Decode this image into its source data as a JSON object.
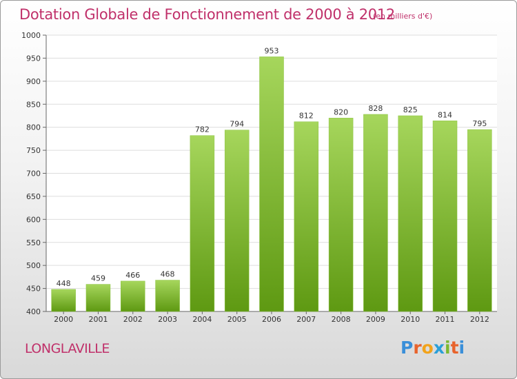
{
  "title": "Dotation Globale de Fonctionnement de 2000 à 2012",
  "subtitle": "(en milliers d'€)",
  "city": "LONGLAVILLE",
  "logo": {
    "text": "Proxiti",
    "letter_colors": [
      "#3a8fd9",
      "#e8632c",
      "#f2a31b",
      "#2a9fd8",
      "#7cb82f",
      "#e8632c",
      "#3a8fd9"
    ]
  },
  "colors": {
    "bar_light": "#a6d65c",
    "bar_dark": "#5e9912",
    "accent": "#c0306a",
    "grid": "#dddddd"
  },
  "chart_data": {
    "type": "bar",
    "categories": [
      "2000",
      "2001",
      "2002",
      "2003",
      "2004",
      "2005",
      "2006",
      "2007",
      "2008",
      "2009",
      "2010",
      "2011",
      "2012"
    ],
    "values": [
      448,
      459,
      466,
      468,
      782,
      794,
      953,
      812,
      820,
      828,
      825,
      814,
      795
    ],
    "ylim": [
      400,
      1000
    ],
    "yticks": [
      400,
      450,
      500,
      550,
      600,
      650,
      700,
      750,
      800,
      850,
      900,
      950,
      1000
    ],
    "grid": true,
    "xlabel": "",
    "ylabel": ""
  }
}
